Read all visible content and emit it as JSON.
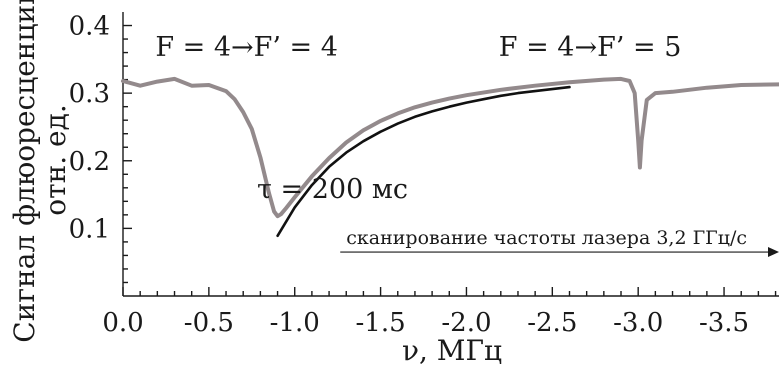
{
  "chart_data": {
    "type": "line",
    "xlabel": "ν, МГц",
    "ylabel_line1": "Сигнал флюоресценции,",
    "ylabel_line2": "отн. ед.",
    "xlim": [
      0.0,
      -3.82
    ],
    "ylim": [
      0.0,
      0.42
    ],
    "x_ticks": [
      0.0,
      -0.5,
      -1.0,
      -1.5,
      -2.0,
      -2.5,
      -3.0,
      -3.5
    ],
    "x_tick_labels": [
      "0.0",
      "-0.5",
      "-1.0",
      "-1.5",
      "-2.0",
      "-2.5",
      "-3.0",
      "-3.5"
    ],
    "y_ticks": [
      0.1,
      0.2,
      0.3,
      0.4
    ],
    "y_tick_labels": [
      "0.1",
      "0.2",
      "0.3",
      "0.4"
    ],
    "grid": false,
    "series": [
      {
        "key": "signal",
        "color": "#938a8c",
        "x": [
          0.0,
          -0.1,
          -0.2,
          -0.3,
          -0.4,
          -0.5,
          -0.6,
          -0.65,
          -0.7,
          -0.75,
          -0.8,
          -0.85,
          -0.88,
          -0.9,
          -0.92,
          -0.95,
          -1.0,
          -1.1,
          -1.2,
          -1.3,
          -1.4,
          -1.5,
          -1.6,
          -1.7,
          -1.8,
          -1.9,
          -2.0,
          -2.2,
          -2.4,
          -2.6,
          -2.8,
          -2.9,
          -2.95,
          -2.98,
          -3.0,
          -3.01,
          -3.02,
          -3.05,
          -3.1,
          -3.2,
          -3.4,
          -3.6,
          -3.82
        ],
        "y": [
          0.318,
          0.311,
          0.317,
          0.321,
          0.311,
          0.312,
          0.303,
          0.291,
          0.272,
          0.247,
          0.205,
          0.152,
          0.125,
          0.118,
          0.121,
          0.13,
          0.146,
          0.177,
          0.204,
          0.227,
          0.245,
          0.259,
          0.27,
          0.279,
          0.286,
          0.292,
          0.297,
          0.305,
          0.311,
          0.316,
          0.32,
          0.321,
          0.318,
          0.3,
          0.23,
          0.19,
          0.23,
          0.29,
          0.3,
          0.302,
          0.308,
          0.312,
          0.313
        ]
      },
      {
        "key": "fit",
        "color": "#111111",
        "x": [
          -0.9,
          -1.0,
          -1.1,
          -1.2,
          -1.3,
          -1.4,
          -1.5,
          -1.6,
          -1.7,
          -1.8,
          -1.9,
          -2.0,
          -2.1,
          -2.2,
          -2.3,
          -2.4,
          -2.5,
          -2.6
        ],
        "y": [
          0.089,
          0.131,
          0.164,
          0.191,
          0.212,
          0.229,
          0.243,
          0.255,
          0.265,
          0.273,
          0.28,
          0.286,
          0.291,
          0.296,
          0.3,
          0.303,
          0.306,
          0.309
        ]
      }
    ],
    "annotations": [
      {
        "key": "trans1",
        "text": "F = 4→F’ = 4",
        "x": -0.72,
        "y": 0.355
      },
      {
        "key": "trans2",
        "text": "F = 4→F’ = 5",
        "x": -2.72,
        "y": 0.355
      },
      {
        "key": "tau",
        "text": "τ = 200 мс",
        "x": -1.22,
        "y": 0.145
      },
      {
        "key": "scan",
        "text": "сканирование частоты лазера 3,2 ГГц/с",
        "x": -1.3,
        "y": 0.065
      }
    ]
  }
}
